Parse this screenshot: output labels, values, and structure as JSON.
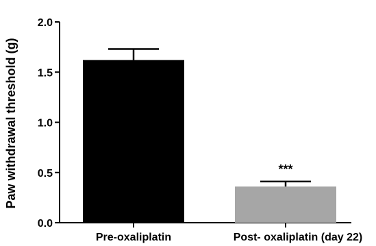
{
  "chart_data": {
    "type": "bar",
    "title": "",
    "xlabel": "",
    "ylabel": "Paw withdrawal threshold (g)",
    "ylim": [
      0,
      2.0
    ],
    "yticks": [
      "0.0",
      "0.5",
      "1.0",
      "1.5",
      "2.0"
    ],
    "categories": [
      "Pre-oxaliplatin",
      "Post- oxaliplatin (day 22)"
    ],
    "values": [
      1.62,
      0.36
    ],
    "errors": [
      0.11,
      0.05
    ],
    "bar_colors": [
      "#000000",
      "#a6a6a6"
    ],
    "annotations": [
      "",
      "***"
    ],
    "grid": false,
    "legend": "none"
  }
}
